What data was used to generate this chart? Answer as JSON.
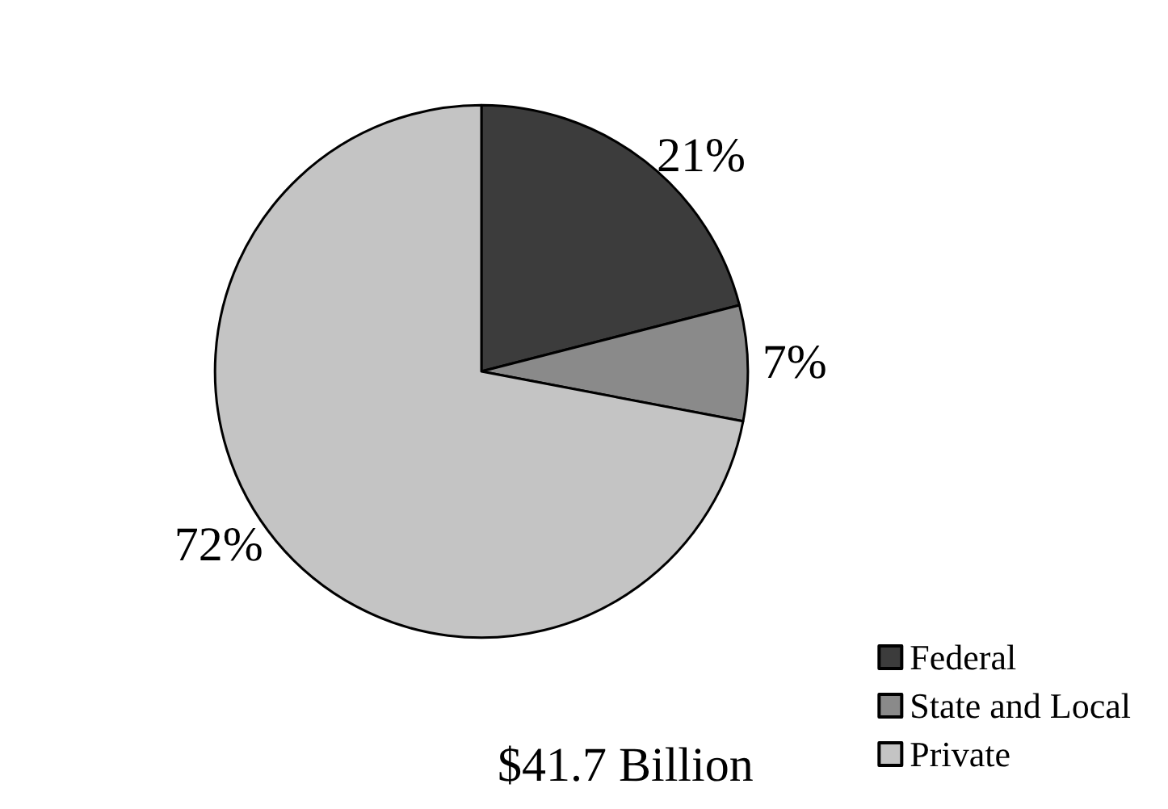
{
  "chart_data": {
    "type": "pie",
    "categories": [
      "Federal",
      "State and Local",
      "Private"
    ],
    "values": [
      21,
      7,
      72
    ],
    "value_labels": [
      "21%",
      "7%",
      "72%"
    ],
    "colors": [
      "#3c3c3c",
      "#8a8a8a",
      "#c4c4c4"
    ],
    "legend": "bottom right",
    "annotations": [
      "$41.7 Billion"
    ]
  }
}
